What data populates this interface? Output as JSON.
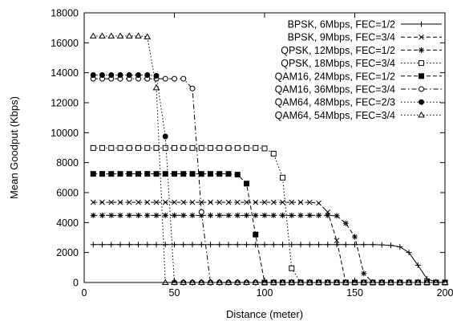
{
  "chart_data": {
    "type": "line",
    "title": "",
    "xlabel": "Distance (meter)",
    "ylabel": "Mean Goodput (Kbps)",
    "xlim": [
      0,
      200
    ],
    "ylim": [
      0,
      18000
    ],
    "xticks": [
      0,
      50,
      100,
      150,
      200
    ],
    "yticks": [
      0,
      2000,
      4000,
      6000,
      8000,
      10000,
      12000,
      14000,
      16000,
      18000
    ],
    "grid": false,
    "legend_position": "top-right",
    "series": [
      {
        "name": "BPSK, 6Mbps, FEC=1/2",
        "marker": "plus",
        "dash": "solid",
        "x": [
          5,
          10,
          15,
          20,
          25,
          30,
          35,
          40,
          45,
          50,
          55,
          60,
          65,
          70,
          75,
          80,
          85,
          90,
          95,
          100,
          105,
          110,
          115,
          120,
          125,
          130,
          135,
          140,
          145,
          150,
          155,
          160,
          165,
          170,
          175,
          180,
          185,
          190,
          195,
          200
        ],
        "y": [
          2530,
          2530,
          2530,
          2530,
          2530,
          2530,
          2530,
          2530,
          2530,
          2530,
          2530,
          2530,
          2530,
          2530,
          2530,
          2530,
          2530,
          2530,
          2530,
          2530,
          2530,
          2530,
          2530,
          2530,
          2530,
          2530,
          2530,
          2530,
          2530,
          2530,
          2530,
          2530,
          2510,
          2480,
          2380,
          2000,
          1150,
          250,
          20,
          0
        ]
      },
      {
        "name": "BPSK, 9Mbps, FEC=3/4",
        "marker": "cross",
        "dash": "dashed",
        "x": [
          5,
          10,
          15,
          20,
          25,
          30,
          35,
          40,
          45,
          50,
          55,
          60,
          65,
          70,
          75,
          80,
          85,
          90,
          95,
          100,
          105,
          110,
          115,
          120,
          125,
          130,
          135,
          140,
          145,
          150,
          155,
          160,
          165,
          170,
          175,
          180,
          185,
          190,
          195,
          200
        ],
        "y": [
          5350,
          5350,
          5350,
          5350,
          5350,
          5350,
          5350,
          5350,
          5350,
          5350,
          5350,
          5350,
          5350,
          5350,
          5350,
          5350,
          5350,
          5350,
          5350,
          5350,
          5350,
          5350,
          5350,
          5350,
          5350,
          5300,
          4700,
          2800,
          0,
          0,
          0,
          0,
          0,
          0,
          0,
          0,
          0,
          0,
          0,
          0
        ]
      },
      {
        "name": "QPSK, 12Mbps, FEC=1/2",
        "marker": "star",
        "dash": "dashed",
        "x": [
          5,
          10,
          15,
          20,
          25,
          30,
          35,
          40,
          45,
          50,
          55,
          60,
          65,
          70,
          75,
          80,
          85,
          90,
          95,
          100,
          105,
          110,
          115,
          120,
          125,
          130,
          135,
          140,
          145,
          150,
          155,
          160,
          165,
          170,
          175,
          180,
          185,
          190,
          195,
          200
        ],
        "y": [
          4480,
          4480,
          4480,
          4480,
          4480,
          4480,
          4480,
          4480,
          4480,
          4480,
          4480,
          4480,
          4480,
          4480,
          4480,
          4480,
          4480,
          4480,
          4480,
          4480,
          4480,
          4480,
          4480,
          4480,
          4480,
          4480,
          4480,
          4450,
          3950,
          3050,
          600,
          0,
          0,
          0,
          0,
          0,
          0,
          0,
          0,
          0
        ]
      },
      {
        "name": "QPSK, 18Mbps, FEC=3/4",
        "marker": "square-open",
        "dash": "dotted",
        "x": [
          5,
          10,
          15,
          20,
          25,
          30,
          35,
          40,
          45,
          50,
          55,
          60,
          65,
          70,
          75,
          80,
          85,
          90,
          95,
          100,
          105,
          110,
          115,
          120,
          125,
          130,
          135,
          140,
          145,
          150,
          155,
          160,
          165,
          170,
          175,
          180,
          185,
          190,
          195,
          200
        ],
        "y": [
          8980,
          8980,
          8980,
          8980,
          8980,
          8980,
          8980,
          8980,
          8980,
          8980,
          8980,
          8980,
          8980,
          8980,
          8980,
          8980,
          8980,
          8980,
          8980,
          8950,
          8600,
          7000,
          950,
          0,
          0,
          0,
          0,
          0,
          0,
          0,
          0,
          0,
          0,
          0,
          0,
          0,
          0,
          0,
          0,
          0
        ]
      },
      {
        "name": "QAM16, 24Mbps, FEC=1/2",
        "marker": "square-filled",
        "dash": "dashed",
        "x": [
          5,
          10,
          15,
          20,
          25,
          30,
          35,
          40,
          45,
          50,
          55,
          60,
          65,
          70,
          75,
          80,
          85,
          90,
          95,
          100,
          105,
          110,
          115,
          120,
          125,
          130,
          135,
          140,
          145,
          150,
          155,
          160,
          165,
          170,
          175,
          180,
          185,
          190,
          195,
          200
        ],
        "y": [
          7250,
          7250,
          7250,
          7250,
          7250,
          7250,
          7250,
          7250,
          7250,
          7250,
          7250,
          7250,
          7250,
          7250,
          7250,
          7250,
          7200,
          6600,
          3200,
          0,
          0,
          0,
          0,
          0,
          0,
          0,
          0,
          0,
          0,
          0,
          0,
          0,
          0,
          0,
          0,
          0,
          0,
          0,
          0,
          0
        ]
      },
      {
        "name": "QAM16, 36Mbps, FEC=3/4",
        "marker": "circle-open",
        "dash": "dashdot",
        "x": [
          5,
          10,
          15,
          20,
          25,
          30,
          35,
          40,
          45,
          50,
          55,
          60,
          65,
          70,
          75,
          80,
          85,
          90,
          95,
          100,
          105,
          110,
          115,
          120,
          125,
          130,
          135,
          140,
          145,
          150,
          155,
          160,
          165,
          170,
          175,
          180,
          185,
          190,
          195,
          200
        ],
        "y": [
          13600,
          13600,
          13600,
          13600,
          13600,
          13600,
          13600,
          13600,
          13600,
          13600,
          13600,
          12950,
          4700,
          0,
          0,
          0,
          0,
          0,
          0,
          0,
          0,
          0,
          0,
          0,
          0,
          0,
          0,
          0,
          0,
          0,
          0,
          0,
          0,
          0,
          0,
          0,
          0,
          0,
          0,
          0
        ]
      },
      {
        "name": "QAM64, 48Mbps, FEC=2/3",
        "marker": "circle-filled",
        "dash": "dotted",
        "x": [
          5,
          10,
          15,
          20,
          25,
          30,
          35,
          40,
          45,
          50,
          55,
          60,
          65,
          70,
          75,
          80,
          85,
          90,
          95,
          100,
          105,
          110,
          115,
          120,
          125,
          130,
          135,
          140,
          145,
          150,
          155,
          160,
          165,
          170,
          175,
          180,
          185,
          190,
          195,
          200
        ],
        "y": [
          13850,
          13850,
          13850,
          13850,
          13850,
          13850,
          13850,
          13800,
          9750,
          0,
          0,
          0,
          0,
          0,
          0,
          0,
          0,
          0,
          0,
          0,
          0,
          0,
          0,
          0,
          0,
          0,
          0,
          0,
          0,
          0,
          0,
          0,
          0,
          0,
          0,
          0,
          0,
          0,
          0,
          0
        ]
      },
      {
        "name": "QAM64, 54Mbps, FEC=3/4",
        "marker": "triangle-open",
        "dash": "dotted",
        "x": [
          5,
          10,
          15,
          20,
          25,
          30,
          35,
          40,
          45,
          50,
          55,
          60,
          65,
          70,
          75,
          80,
          85,
          90,
          95,
          100,
          105,
          110,
          115,
          120,
          125,
          130,
          135,
          140,
          145,
          150,
          155,
          160,
          165,
          170,
          175,
          180,
          185,
          190,
          195,
          200
        ],
        "y": [
          16450,
          16450,
          16450,
          16450,
          16450,
          16450,
          16400,
          13000,
          0,
          0,
          0,
          0,
          0,
          0,
          0,
          0,
          0,
          0,
          0,
          0,
          0,
          0,
          0,
          0,
          0,
          0,
          0,
          0,
          0,
          0,
          0,
          0,
          0,
          0,
          0,
          0,
          0,
          0,
          0,
          0
        ]
      }
    ]
  }
}
